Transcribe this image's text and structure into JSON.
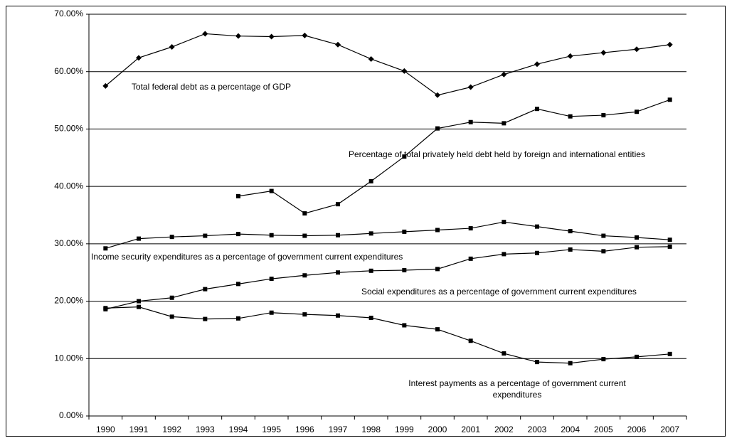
{
  "chart_data": {
    "type": "line",
    "categories": [
      "1990",
      "1991",
      "1992",
      "1993",
      "1994",
      "1995",
      "1996",
      "1997",
      "1998",
      "1999",
      "2000",
      "2001",
      "2002",
      "2003",
      "2004",
      "2005",
      "2006",
      "2007"
    ],
    "ylim": [
      0,
      70
    ],
    "yticks": [
      {
        "value": 0,
        "label": "0.00%"
      },
      {
        "value": 10,
        "label": "10.00%"
      },
      {
        "value": 20,
        "label": "20.00%"
      },
      {
        "value": 30,
        "label": "30.00%"
      },
      {
        "value": 40,
        "label": "40.00%"
      },
      {
        "value": 50,
        "label": "50.00%"
      },
      {
        "value": 60,
        "label": "60.00%"
      },
      {
        "value": 70,
        "label": "70.00%"
      }
    ],
    "grid": true,
    "series": [
      {
        "name": "Total federal debt as a percentage of GDP",
        "color": "#000000",
        "marker": "diamond",
        "values": [
          57.5,
          62.4,
          64.3,
          66.6,
          66.2,
          66.1,
          66.3,
          64.7,
          62.2,
          60.1,
          55.9,
          57.3,
          59.5,
          61.3,
          62.7,
          63.3,
          63.9,
          64.7
        ]
      },
      {
        "name": "Percentage of total privately held debt held by foreign and international entities",
        "color": "#000000",
        "marker": "square",
        "values": [
          null,
          null,
          null,
          null,
          38.3,
          39.2,
          35.3,
          36.9,
          40.9,
          45.2,
          50.1,
          51.2,
          51.0,
          53.5,
          52.2,
          52.4,
          53.0,
          55.1
        ]
      },
      {
        "name": "Income security expenditures as a percentage of government current expenditures",
        "color": "#000000",
        "marker": "square",
        "values": [
          29.2,
          30.9,
          31.2,
          31.4,
          31.7,
          31.5,
          31.4,
          31.5,
          31.8,
          32.1,
          32.4,
          32.7,
          33.8,
          33.0,
          32.2,
          31.4,
          31.1,
          30.7
        ]
      },
      {
        "name": "Social expenditures as a percentage of government current expenditures",
        "color": "#000000",
        "marker": "square",
        "values": [
          18.6,
          20.0,
          20.6,
          22.1,
          23.0,
          23.9,
          24.5,
          25.0,
          25.3,
          25.4,
          25.6,
          27.4,
          28.2,
          28.4,
          29.0,
          28.7,
          29.4,
          29.5
        ]
      },
      {
        "name": "Interest payments as a percentage of government current expenditures",
        "color": "#000000",
        "marker": "square",
        "values": [
          18.8,
          19.0,
          17.3,
          16.9,
          17.0,
          18.0,
          17.7,
          17.5,
          17.1,
          15.8,
          15.1,
          13.1,
          10.9,
          9.4,
          9.2,
          9.9,
          10.3,
          10.8
        ]
      }
    ]
  }
}
